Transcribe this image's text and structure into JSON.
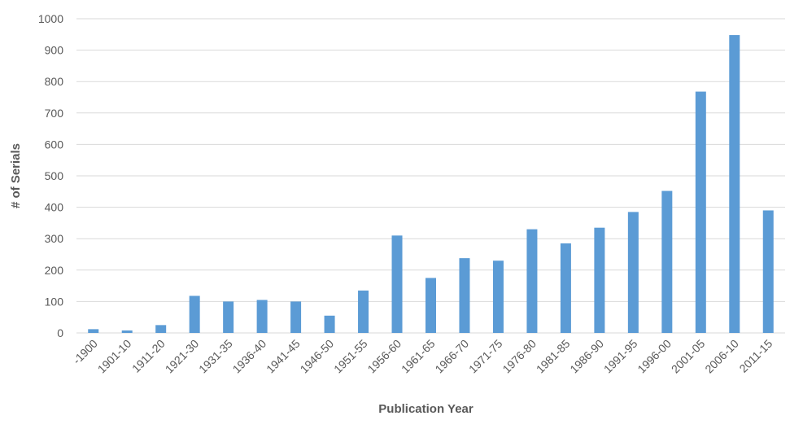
{
  "chart_data": {
    "type": "bar",
    "title": "",
    "xlabel": "Publication Year",
    "ylabel": "# of Serials",
    "ylim": [
      0,
      1000
    ],
    "yticks": [
      0,
      100,
      200,
      300,
      400,
      500,
      600,
      700,
      800,
      900,
      1000
    ],
    "grid": true,
    "legend": "none",
    "bar_color": "#5b9bd5",
    "categories": [
      "-1900",
      "1901-10",
      "1911-20",
      "1921-30",
      "1931-35",
      "1936-40",
      "1941-45",
      "1946-50",
      "1951-55",
      "1956-60",
      "1961-65",
      "1966-70",
      "1971-75",
      "1976-80",
      "1981-85",
      "1986-90",
      "1991-95",
      "1996-00",
      "2001-05",
      "2006-10",
      "2011-15"
    ],
    "values": [
      12,
      8,
      25,
      118,
      100,
      105,
      100,
      55,
      135,
      310,
      175,
      238,
      230,
      330,
      285,
      335,
      385,
      452,
      768,
      948,
      390
    ]
  }
}
